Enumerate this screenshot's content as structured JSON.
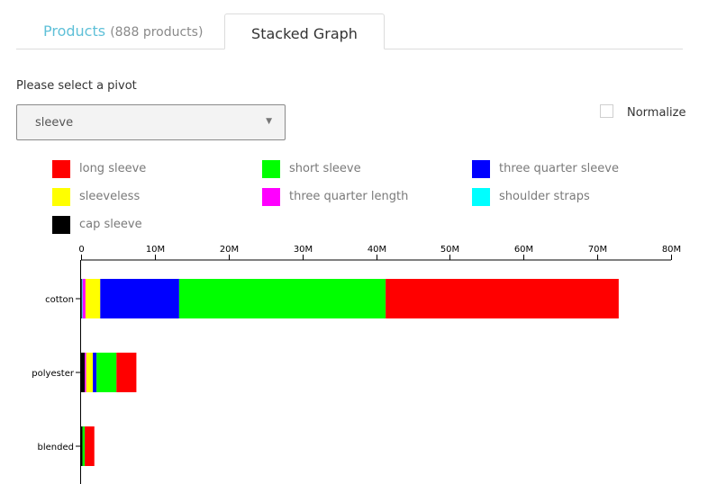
{
  "tabs": [
    {
      "label": "Products",
      "count": "(888 products)"
    },
    {
      "label": "Stacked Graph"
    }
  ],
  "pivot": {
    "label": "Please select a pivot",
    "selected": "sleeve"
  },
  "normalize": {
    "label": "Normalize",
    "checked": false
  },
  "chart_data": {
    "type": "bar",
    "orientation": "horizontal",
    "stacked": true,
    "categories": [
      "cotton",
      "polyester",
      "blended"
    ],
    "xlim": [
      0,
      80000000
    ],
    "xticks": [
      {
        "value": 0,
        "label": "0"
      },
      {
        "value": 10000000,
        "label": "10M"
      },
      {
        "value": 20000000,
        "label": "20M"
      },
      {
        "value": 30000000,
        "label": "30M"
      },
      {
        "value": 40000000,
        "label": "40M"
      },
      {
        "value": 50000000,
        "label": "50M"
      },
      {
        "value": 60000000,
        "label": "60M"
      },
      {
        "value": 70000000,
        "label": "70M"
      },
      {
        "value": 80000000,
        "label": "80M"
      }
    ],
    "series": [
      {
        "name": "cap sleeve",
        "color": "#000000",
        "values": [
          100000,
          500000,
          200000
        ]
      },
      {
        "name": "shoulder straps",
        "color": "#00ffff",
        "values": [
          100000,
          0,
          0
        ]
      },
      {
        "name": "three quarter length",
        "color": "#ff00ff",
        "values": [
          400000,
          200000,
          0
        ]
      },
      {
        "name": "sleeveless",
        "color": "#ffff00",
        "values": [
          2000000,
          900000,
          0
        ]
      },
      {
        "name": "three quarter sleeve",
        "color": "#0000ff",
        "values": [
          10700000,
          500000,
          0
        ]
      },
      {
        "name": "short sleeve",
        "color": "#00ff00",
        "values": [
          28000000,
          2700000,
          300000
        ]
      },
      {
        "name": "long sleeve",
        "color": "#ff0000",
        "values": [
          31600000,
          2700000,
          1300000
        ]
      }
    ],
    "legend": [
      {
        "name": "long sleeve",
        "color": "#ff0000"
      },
      {
        "name": "short sleeve",
        "color": "#00ff00"
      },
      {
        "name": "three quarter sleeve",
        "color": "#0000ff"
      },
      {
        "name": "sleeveless",
        "color": "#ffff00"
      },
      {
        "name": "three quarter length",
        "color": "#ff00ff"
      },
      {
        "name": "shoulder straps",
        "color": "#00ffff"
      },
      {
        "name": "cap sleeve",
        "color": "#000000"
      }
    ],
    "legend_placement": "top"
  }
}
